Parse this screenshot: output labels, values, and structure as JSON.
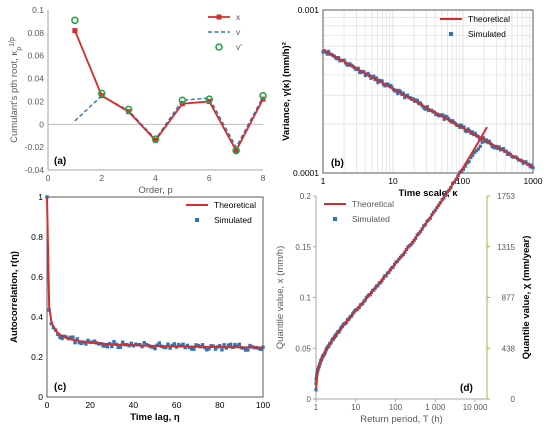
{
  "colors": {
    "red": "#d62c2c",
    "blue": "#2e75b6",
    "green": "#22a84a",
    "grid": "#d9d9d9",
    "axis": "#a6a6a6"
  },
  "chart_data": [
    {
      "panel": "(a)",
      "type": "line",
      "xlabel": "Order, p",
      "ylabel": "Cumulant's pth root, κp^1/p",
      "xlim": [
        0,
        8
      ],
      "ylim": [
        -0.04,
        0.1
      ],
      "xticks": [
        "0",
        "2",
        "4",
        "6",
        "8"
      ],
      "yticks": [
        "-0.04",
        "-0.02",
        "0",
        "0.02",
        "0.04",
        "0.06",
        "0.08",
        "0.1"
      ],
      "legend_position": "top-right",
      "grid": false,
      "series": [
        {
          "name": "x",
          "style": "line-square",
          "x": [
            1,
            2,
            3,
            4,
            5,
            6,
            7,
            8
          ],
          "y": [
            0.082,
            0.025,
            0.011,
            -0.014,
            0.018,
            0.02,
            -0.023,
            0.022
          ]
        },
        {
          "name": "v",
          "style": "dashed",
          "x": [
            1,
            2,
            3,
            4,
            5,
            6,
            7,
            8
          ],
          "y": [
            0.003,
            0.025,
            0.012,
            -0.013,
            0.021,
            0.023,
            -0.02,
            0.024
          ]
        },
        {
          "name": "v'",
          "style": "circle",
          "x": [
            1,
            2,
            3,
            4,
            5,
            6,
            7,
            8
          ],
          "y": [
            0.091,
            0.027,
            0.013,
            -0.013,
            0.021,
            0.022,
            -0.023,
            0.025
          ]
        }
      ]
    },
    {
      "panel": "(b)",
      "type": "line",
      "xlabel": "Time scale, κ",
      "ylabel": "Variance, γ(κ) (mm/h)²",
      "xscale": "log",
      "yscale": "log",
      "xlim": [
        1,
        1000
      ],
      "ylim": [
        0.0001,
        0.001
      ],
      "xticks": [
        "1",
        "10",
        "100",
        "1000"
      ],
      "yticks": [
        "0.0001",
        "0.001"
      ],
      "legend_position": "top-right",
      "grid": true,
      "theoretical": {
        "name": "Theoretical",
        "x0": 1,
        "y0": 0.00057,
        "slope": -0.24
      },
      "simulated": {
        "name": "Simulated",
        "count": 150,
        "x_range": [
          1,
          1000
        ]
      }
    },
    {
      "panel": "(c)",
      "type": "line",
      "xlabel": "Time lag, η",
      "ylabel": "Autocorrelation, r(η)",
      "xlim": [
        0,
        100
      ],
      "ylim": [
        0,
        1
      ],
      "xticks": [
        "0",
        "20",
        "40",
        "60",
        "80",
        "100"
      ],
      "yticks": [
        "0",
        "0.2",
        "0.4",
        "0.6",
        "0.8",
        "1"
      ],
      "legend_position": "top-right",
      "grid": false,
      "theoretical": {
        "name": "Theoretical",
        "r0": 1.0,
        "r1": 0.45,
        "r100": 0.23
      },
      "simulated": {
        "name": "Simulated",
        "x_range": [
          0,
          100
        ],
        "count": 101
      }
    },
    {
      "panel": "(d)",
      "type": "line",
      "xlabel": "Return period, T (h)",
      "ylabel": "Quantile value, x (mm/h)",
      "ylabel_right": "Quantile value, χ (mm/year)",
      "xscale": "log",
      "xlim": [
        1,
        20000
      ],
      "ylim": [
        0,
        0.2
      ],
      "xticks": [
        "1",
        "10",
        "100",
        "1 000",
        "10 000"
      ],
      "yticks": [
        "0",
        "0.05",
        "0.1",
        "0.15",
        "0.2"
      ],
      "yticks_right": [
        "0",
        "438",
        "877",
        "1315",
        "1753"
      ],
      "legend_position": "top-left",
      "grid": false,
      "theoretical": {
        "name": "Theoretical"
      },
      "simulated": {
        "name": "Simulated",
        "x_range": [
          1,
          15000
        ]
      }
    }
  ]
}
